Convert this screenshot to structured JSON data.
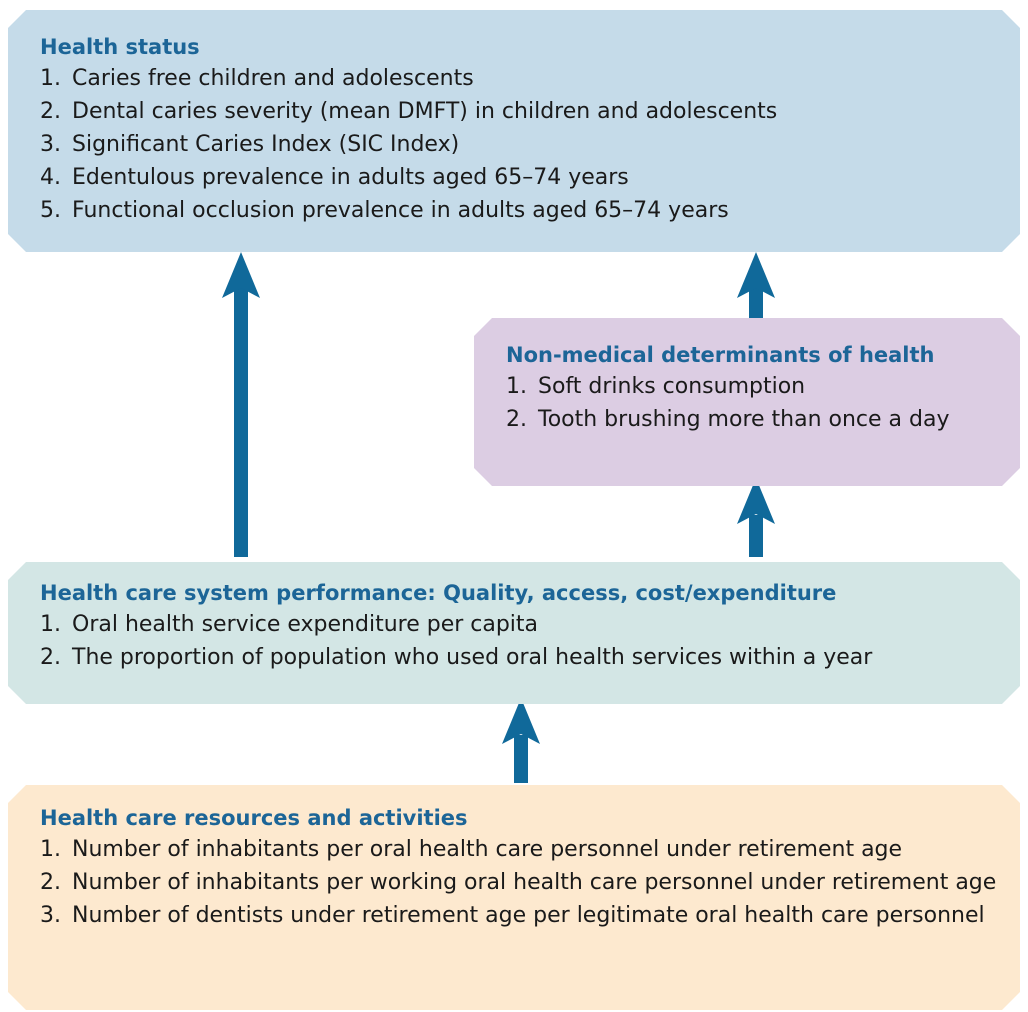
{
  "boxes": [
    {
      "title": "Health status",
      "items": [
        {
          "number": "1.",
          "text": "Caries free children and adolescents"
        },
        {
          "number": "2.",
          "text": "Dental caries severity (mean DMFT) in children and adolescents"
        },
        {
          "number": "3.",
          "text": "Significant Caries Index (SIC Index)"
        },
        {
          "number": "4.",
          "text": "Edentulous prevalence in adults aged 65–74 years"
        },
        {
          "number": "5.",
          "text": "Functional occlusion prevalence in adults aged 65–74 years"
        }
      ]
    },
    {
      "title": "Non-medical determinants of health",
      "items": [
        {
          "number": "1.",
          "text": "Soft drinks consumption"
        },
        {
          "number": "2.",
          "text": "Tooth brushing more than once a day"
        }
      ]
    },
    {
      "title": "Health care system performance: Quality, access, cost/expenditure",
      "items": [
        {
          "number": "1.",
          "text": "Oral health service expenditure per capita"
        },
        {
          "number": "2.",
          "text": "The proportion of population who used oral health services within a year"
        }
      ]
    },
    {
      "title": "Health care resources and activities",
      "items": [
        {
          "number": "1.",
          "text": "Number of inhabitants per oral health care personnel under retirement age"
        },
        {
          "number": "2.",
          "text": "Number of inhabitants per working oral health care personnel under retirement age"
        },
        {
          "number": "3.",
          "text": "Number of dentists under retirement age per legitimate oral health care personnel"
        }
      ]
    }
  ]
}
